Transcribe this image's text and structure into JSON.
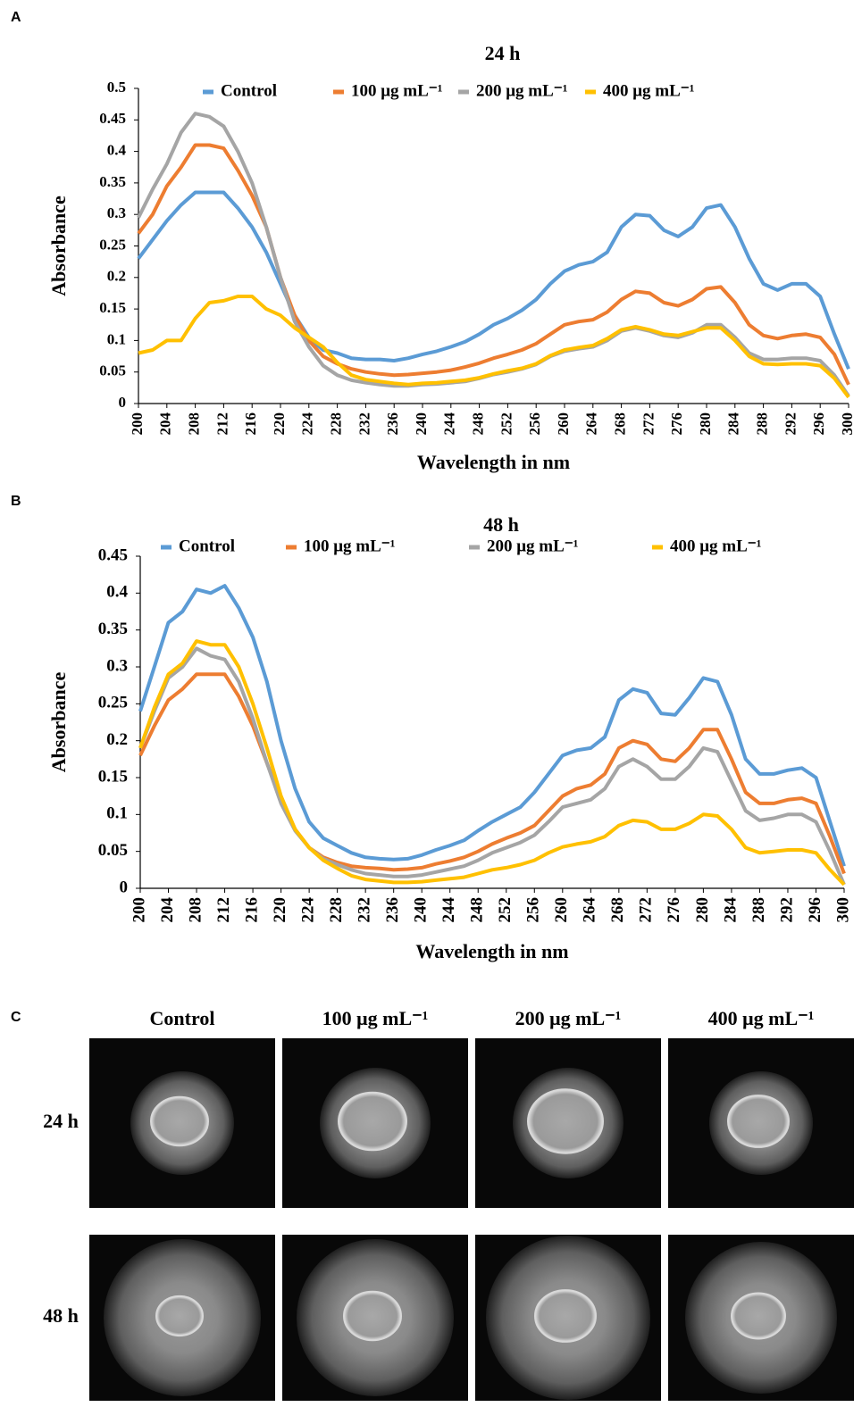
{
  "panel_labels": [
    "A",
    "B",
    "C"
  ],
  "chart_data": [
    {
      "type": "line",
      "title": "24 h",
      "x_label": "Wavelength in nm",
      "y_label": "Absorbance",
      "x": [
        200,
        202,
        204,
        206,
        208,
        210,
        212,
        214,
        216,
        218,
        220,
        222,
        224,
        226,
        228,
        230,
        232,
        234,
        236,
        238,
        240,
        242,
        244,
        246,
        248,
        250,
        252,
        254,
        256,
        258,
        260,
        262,
        264,
        266,
        268,
        270,
        272,
        274,
        276,
        278,
        280,
        282,
        284,
        286,
        288,
        290,
        292,
        294,
        296,
        298,
        300
      ],
      "xlim": [
        200,
        300
      ],
      "xticks": [
        200,
        204,
        208,
        212,
        216,
        220,
        224,
        228,
        232,
        236,
        240,
        244,
        248,
        252,
        256,
        260,
        264,
        268,
        272,
        276,
        280,
        284,
        288,
        292,
        296,
        300
      ],
      "ylim": [
        0,
        0.5
      ],
      "yticks": [
        0,
        0.05,
        0.1,
        0.15,
        0.2,
        0.25,
        0.3,
        0.35,
        0.4,
        0.45,
        0.5
      ],
      "series": [
        {
          "name": "Control",
          "color": "#5b9bd5",
          "values": [
            0.23,
            0.26,
            0.29,
            0.315,
            0.335,
            0.335,
            0.335,
            0.31,
            0.28,
            0.24,
            0.19,
            0.14,
            0.105,
            0.085,
            0.08,
            0.072,
            0.07,
            0.07,
            0.068,
            0.072,
            0.078,
            0.083,
            0.09,
            0.098,
            0.11,
            0.125,
            0.135,
            0.148,
            0.165,
            0.19,
            0.21,
            0.22,
            0.225,
            0.24,
            0.28,
            0.3,
            0.298,
            0.275,
            0.265,
            0.28,
            0.31,
            0.315,
            0.28,
            0.23,
            0.19,
            0.18,
            0.19,
            0.19,
            0.17,
            0.11,
            0.055
          ]
        },
        {
          "name": "100 μg mL⁻¹",
          "color": "#ed7d31",
          "values": [
            0.27,
            0.3,
            0.345,
            0.375,
            0.41,
            0.41,
            0.405,
            0.37,
            0.33,
            0.28,
            0.2,
            0.14,
            0.1,
            0.075,
            0.063,
            0.055,
            0.05,
            0.047,
            0.045,
            0.046,
            0.048,
            0.05,
            0.053,
            0.058,
            0.064,
            0.072,
            0.078,
            0.085,
            0.095,
            0.11,
            0.125,
            0.13,
            0.133,
            0.145,
            0.165,
            0.178,
            0.175,
            0.16,
            0.155,
            0.165,
            0.182,
            0.185,
            0.16,
            0.125,
            0.108,
            0.103,
            0.108,
            0.11,
            0.105,
            0.078,
            0.03
          ]
        },
        {
          "name": "200 μg mL⁻¹",
          "color": "#a5a5a5",
          "values": [
            0.295,
            0.34,
            0.38,
            0.43,
            0.46,
            0.455,
            0.44,
            0.4,
            0.35,
            0.28,
            0.2,
            0.13,
            0.09,
            0.06,
            0.045,
            0.037,
            0.033,
            0.03,
            0.028,
            0.028,
            0.03,
            0.031,
            0.033,
            0.035,
            0.04,
            0.046,
            0.05,
            0.055,
            0.062,
            0.075,
            0.083,
            0.087,
            0.09,
            0.1,
            0.115,
            0.12,
            0.115,
            0.108,
            0.105,
            0.112,
            0.125,
            0.125,
            0.105,
            0.08,
            0.07,
            0.07,
            0.072,
            0.072,
            0.068,
            0.045,
            0.012
          ]
        },
        {
          "name": "400 μg mL⁻¹",
          "color": "#ffc000",
          "values": [
            0.08,
            0.085,
            0.1,
            0.1,
            0.135,
            0.16,
            0.163,
            0.17,
            0.17,
            0.15,
            0.14,
            0.12,
            0.105,
            0.09,
            0.065,
            0.045,
            0.038,
            0.035,
            0.032,
            0.03,
            0.032,
            0.033,
            0.035,
            0.037,
            0.041,
            0.047,
            0.052,
            0.056,
            0.063,
            0.076,
            0.085,
            0.089,
            0.092,
            0.103,
            0.117,
            0.122,
            0.117,
            0.11,
            0.108,
            0.114,
            0.12,
            0.12,
            0.1,
            0.075,
            0.063,
            0.062,
            0.063,
            0.063,
            0.06,
            0.04,
            0.01
          ]
        }
      ]
    },
    {
      "type": "line",
      "title": "48 h",
      "x_label": "Wavelength in nm",
      "y_label": "Absorbance",
      "x": [
        200,
        202,
        204,
        206,
        208,
        210,
        212,
        214,
        216,
        218,
        220,
        222,
        224,
        226,
        228,
        230,
        232,
        234,
        236,
        238,
        240,
        242,
        244,
        246,
        248,
        250,
        252,
        254,
        256,
        258,
        260,
        262,
        264,
        266,
        268,
        270,
        272,
        274,
        276,
        278,
        280,
        282,
        284,
        286,
        288,
        290,
        292,
        294,
        296,
        298,
        300
      ],
      "xlim": [
        200,
        300
      ],
      "xticks": [
        200,
        204,
        208,
        212,
        216,
        220,
        224,
        228,
        232,
        236,
        240,
        244,
        248,
        252,
        256,
        260,
        264,
        268,
        272,
        276,
        280,
        284,
        288,
        292,
        296,
        300
      ],
      "ylim": [
        0,
        0.45
      ],
      "yticks": [
        0,
        0.05,
        0.1,
        0.15,
        0.2,
        0.25,
        0.3,
        0.35,
        0.4,
        0.45
      ],
      "series": [
        {
          "name": "Control",
          "color": "#5b9bd5",
          "values": [
            0.24,
            0.3,
            0.36,
            0.375,
            0.405,
            0.4,
            0.41,
            0.38,
            0.34,
            0.28,
            0.2,
            0.135,
            0.09,
            0.068,
            0.058,
            0.048,
            0.042,
            0.04,
            0.039,
            0.04,
            0.045,
            0.052,
            0.058,
            0.065,
            0.078,
            0.09,
            0.1,
            0.11,
            0.13,
            0.155,
            0.18,
            0.187,
            0.19,
            0.205,
            0.255,
            0.27,
            0.265,
            0.237,
            0.235,
            0.258,
            0.285,
            0.28,
            0.235,
            0.175,
            0.155,
            0.155,
            0.16,
            0.163,
            0.15,
            0.09,
            0.03
          ]
        },
        {
          "name": "100 μg mL⁻¹",
          "color": "#ed7d31",
          "values": [
            0.18,
            0.22,
            0.255,
            0.27,
            0.29,
            0.29,
            0.29,
            0.26,
            0.22,
            0.17,
            0.12,
            0.08,
            0.055,
            0.042,
            0.035,
            0.03,
            0.028,
            0.027,
            0.025,
            0.026,
            0.028,
            0.033,
            0.037,
            0.042,
            0.05,
            0.06,
            0.068,
            0.075,
            0.085,
            0.105,
            0.125,
            0.135,
            0.14,
            0.155,
            0.19,
            0.2,
            0.195,
            0.175,
            0.172,
            0.19,
            0.215,
            0.215,
            0.175,
            0.13,
            0.115,
            0.115,
            0.12,
            0.122,
            0.115,
            0.07,
            0.02
          ]
        },
        {
          "name": "200 μg mL⁻¹",
          "color": "#a5a5a5",
          "values": [
            0.19,
            0.24,
            0.285,
            0.3,
            0.325,
            0.315,
            0.31,
            0.28,
            0.23,
            0.17,
            0.115,
            0.078,
            0.055,
            0.04,
            0.032,
            0.025,
            0.02,
            0.018,
            0.016,
            0.016,
            0.018,
            0.022,
            0.026,
            0.03,
            0.038,
            0.048,
            0.055,
            0.062,
            0.072,
            0.09,
            0.11,
            0.115,
            0.12,
            0.135,
            0.165,
            0.175,
            0.165,
            0.148,
            0.148,
            0.165,
            0.19,
            0.185,
            0.145,
            0.105,
            0.092,
            0.095,
            0.1,
            0.1,
            0.09,
            0.05,
            0.005
          ]
        },
        {
          "name": "400 μg mL⁻¹",
          "color": "#ffc000",
          "values": [
            0.19,
            0.245,
            0.29,
            0.305,
            0.335,
            0.33,
            0.33,
            0.3,
            0.25,
            0.19,
            0.125,
            0.08,
            0.055,
            0.038,
            0.027,
            0.017,
            0.012,
            0.01,
            0.008,
            0.008,
            0.009,
            0.011,
            0.013,
            0.015,
            0.02,
            0.025,
            0.028,
            0.032,
            0.038,
            0.048,
            0.056,
            0.06,
            0.063,
            0.07,
            0.085,
            0.092,
            0.09,
            0.08,
            0.08,
            0.088,
            0.1,
            0.098,
            0.08,
            0.055,
            0.048,
            0.05,
            0.052,
            0.052,
            0.048,
            0.025,
            0.005
          ]
        }
      ]
    }
  ],
  "panel_c": {
    "columns": [
      "Control",
      "100 μg mL⁻¹",
      "200 μg mL⁻¹",
      "400 μg mL⁻¹"
    ],
    "rows": [
      "24 h",
      "48 h"
    ]
  }
}
